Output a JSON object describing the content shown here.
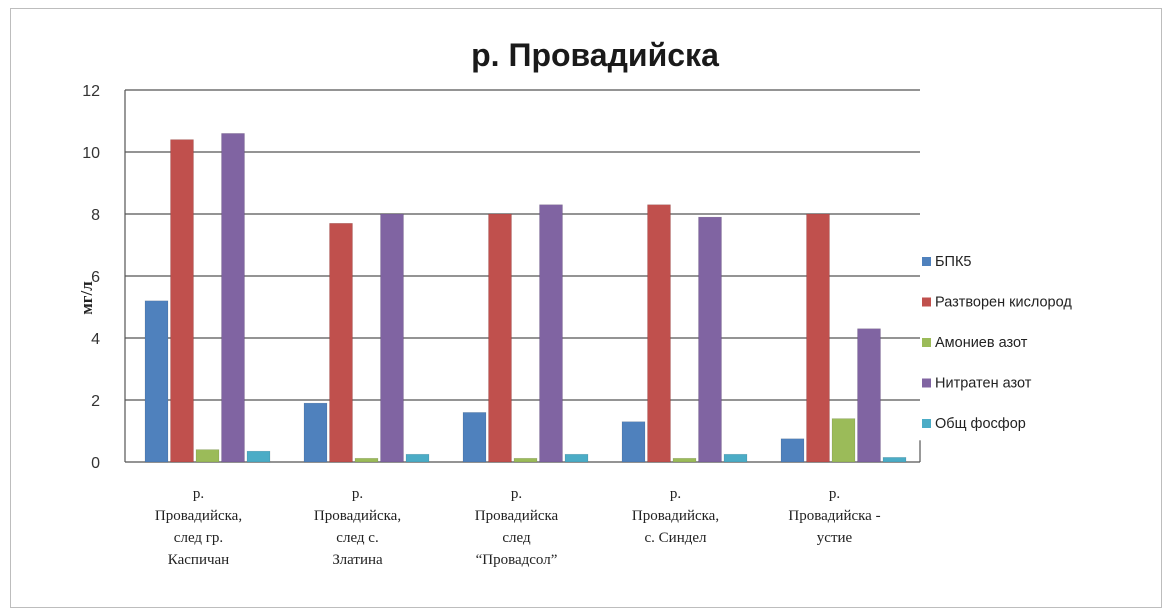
{
  "chart_data": {
    "type": "bar",
    "title": "р. Провадийска",
    "ylabel": "мг/л",
    "ylim": [
      0,
      12
    ],
    "yticks": [
      "0",
      "2",
      "4",
      "6",
      "8",
      "10",
      "12"
    ],
    "grid": true,
    "legend_position": "right",
    "categories": [
      [
        "р.",
        "Провадийска,",
        "след гр.",
        "Каспичан"
      ],
      [
        "р.",
        "Провадийска,",
        "след с.",
        "Златина"
      ],
      [
        "р.",
        "Провадийска",
        "след",
        "“Провадсол”"
      ],
      [
        "р.",
        "Провадийска,",
        "с. Синдел"
      ],
      [
        "р.",
        "Провадийска -",
        "устие"
      ]
    ],
    "series": [
      {
        "name": "БПК5",
        "color": "#4f81bd",
        "values": [
          5.2,
          1.9,
          1.6,
          1.3,
          0.75
        ]
      },
      {
        "name": "Разтворен кислород",
        "color": "#c0504d",
        "values": [
          10.4,
          7.7,
          8.0,
          8.3,
          8.0
        ]
      },
      {
        "name": "Амониев азот",
        "color": "#9bbb59",
        "values": [
          0.4,
          0.12,
          0.12,
          0.12,
          1.4
        ]
      },
      {
        "name": "Нитратен азот",
        "color": "#8064a2",
        "values": [
          10.6,
          8.0,
          8.3,
          7.9,
          4.3
        ]
      },
      {
        "name": "Общ фосфор",
        "color": "#4bacc6",
        "values": [
          0.35,
          0.25,
          0.25,
          0.25,
          0.15
        ]
      }
    ]
  }
}
